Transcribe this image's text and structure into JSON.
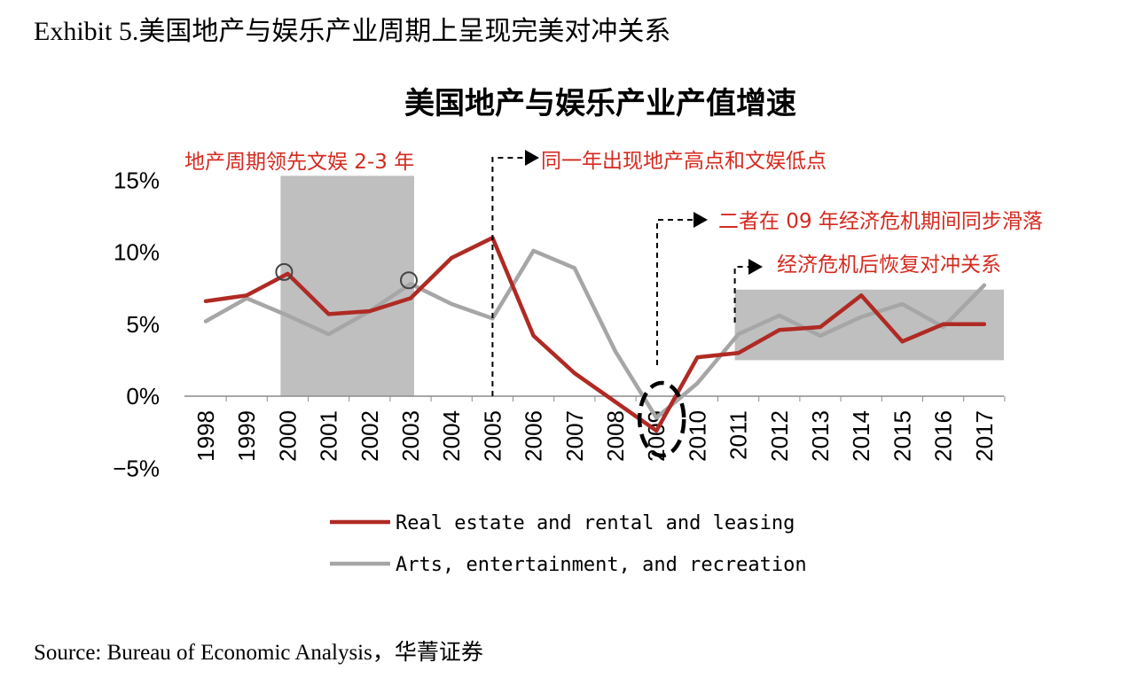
{
  "exhibit_title": "Exhibit 5.美国地产与娱乐产业周期上呈现完美对冲关系",
  "source": "Source: Bureau of Economic Analysis，华菁证券",
  "chart_data": {
    "type": "line",
    "title": "美国地产与娱乐产业产值增速",
    "categories": [
      "1998",
      "1999",
      "2000",
      "2001",
      "2002",
      "2003",
      "2004",
      "2005",
      "2006",
      "2007",
      "2008",
      "2009",
      "2010",
      "2011",
      "2012",
      "2013",
      "2014",
      "2015",
      "2016",
      "2017"
    ],
    "y_ticks": [
      "15%",
      "10%",
      "5%",
      "0%",
      "−5%"
    ],
    "y_tick_values": [
      15,
      10,
      5,
      0,
      -5
    ],
    "ylim": [
      -5,
      15
    ],
    "grid": false,
    "legend_position": "bottom",
    "series": [
      {
        "name": "Real estate and rental and leasing",
        "color": "#b02a24",
        "values": [
          6.6,
          7.0,
          8.5,
          5.7,
          5.9,
          6.8,
          9.6,
          11.0,
          4.2,
          1.6,
          -0.4,
          -2.4,
          2.7,
          3.0,
          4.6,
          4.8,
          7.0,
          3.8,
          5.0,
          5.0
        ]
      },
      {
        "name": "Arts, entertainment, and recreation",
        "color": "#a6a6a6",
        "values": [
          5.2,
          6.8,
          5.6,
          4.3,
          5.9,
          7.8,
          6.4,
          5.4,
          10.1,
          8.9,
          3.1,
          -1.5,
          0.9,
          4.3,
          5.6,
          4.2,
          5.5,
          6.4,
          4.8,
          7.7
        ]
      }
    ],
    "shaded_regions": [
      {
        "x_start": "2000",
        "x_end": "2003",
        "y_range": [
          0,
          15.3
        ]
      },
      {
        "x_start": "2011",
        "x_end": "2017",
        "y_range": [
          2.5,
          7.4
        ]
      }
    ],
    "annotations": [
      {
        "text": "地产周期领先文娱 2-3 年"
      },
      {
        "text": "同一年出现地产高点和文娱低点"
      },
      {
        "text": "二者在 09 年经济危机期间同步滑落"
      },
      {
        "text": "经济危机后恢复对冲关系"
      }
    ],
    "colors": {
      "annotation": "#d42a1f",
      "shade": "#bfbfbf",
      "axis": "#8c8c8c"
    }
  }
}
